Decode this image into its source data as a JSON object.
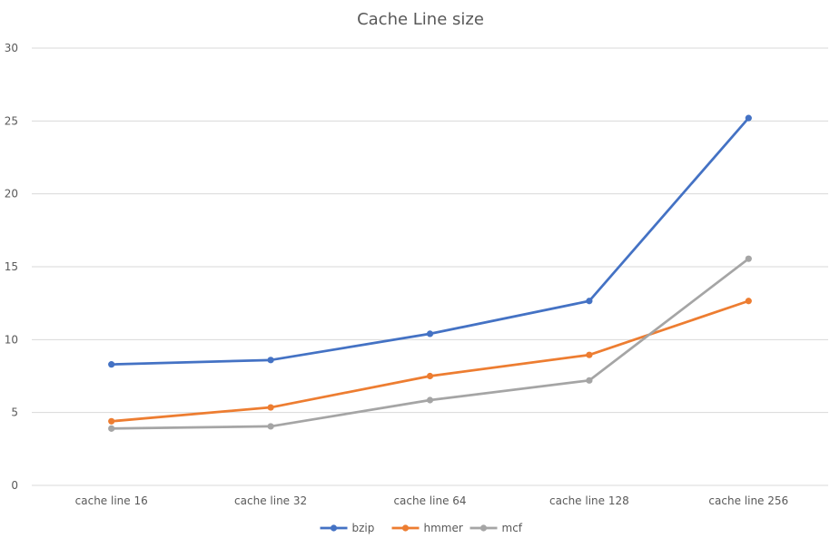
{
  "chart_data": {
    "type": "line",
    "title": "Cache Line size",
    "xlabel": "",
    "ylabel": "",
    "categories": [
      "cache line 16",
      "cache line 32",
      "cache line 64",
      "cache line 128",
      "cache line 256"
    ],
    "ylim": [
      0,
      30
    ],
    "yticks": [
      0,
      5,
      10,
      15,
      20,
      25,
      30
    ],
    "grid": true,
    "legend": "bottom",
    "series": [
      {
        "name": "bzip",
        "color": "#4472c4",
        "values": [
          8.3,
          8.6,
          10.4,
          12.65,
          25.2
        ]
      },
      {
        "name": "hmmer",
        "color": "#ed7d31",
        "values": [
          4.4,
          5.35,
          7.5,
          8.95,
          12.65
        ]
      },
      {
        "name": "mcf",
        "color": "#a5a5a5",
        "values": [
          3.9,
          4.05,
          5.85,
          7.2,
          15.55
        ]
      }
    ]
  }
}
